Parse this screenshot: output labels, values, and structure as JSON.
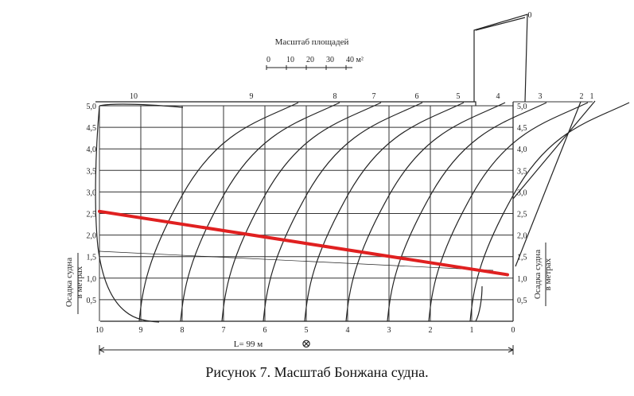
{
  "caption": "Рисунок 7. Масштаб Бонжана судна.",
  "scale_bar": {
    "title": "Масштаб площадей",
    "ticks": [
      "0",
      "10",
      "20",
      "30",
      "40 м²"
    ]
  },
  "left_axis": {
    "title": "Осадка судна",
    "subtitle": "в метрах",
    "ticks": [
      "0,5",
      "1,0",
      "1,5",
      "2,0",
      "2,5",
      "3,0",
      "3,5",
      "4,0",
      "4,5",
      "5,0"
    ]
  },
  "right_axis": {
    "title": "Осадка судна",
    "subtitle": "в метрах",
    "ticks": [
      "0,5",
      "1,0",
      "1,5",
      "2,0",
      "2,5",
      "3,0",
      "3,5",
      "4,0",
      "4,5",
      "5,0"
    ]
  },
  "station_labels_bottom": [
    "10",
    "9",
    "8",
    "7",
    "6",
    "5",
    "4",
    "3",
    "2",
    "1",
    "0"
  ],
  "station_labels_top": [
    "10",
    "9",
    "8",
    "7",
    "6",
    "5",
    "4",
    "3",
    "2",
    "1",
    "0"
  ],
  "length_label": "L= 99 м",
  "midship_symbol": "⊗",
  "colors": {
    "lines": "#222222",
    "grid": "#333333",
    "waterline": "#e02020"
  },
  "waterline": {
    "draft_aft_m": 2.55,
    "draft_fore_m": 1.08
  }
}
